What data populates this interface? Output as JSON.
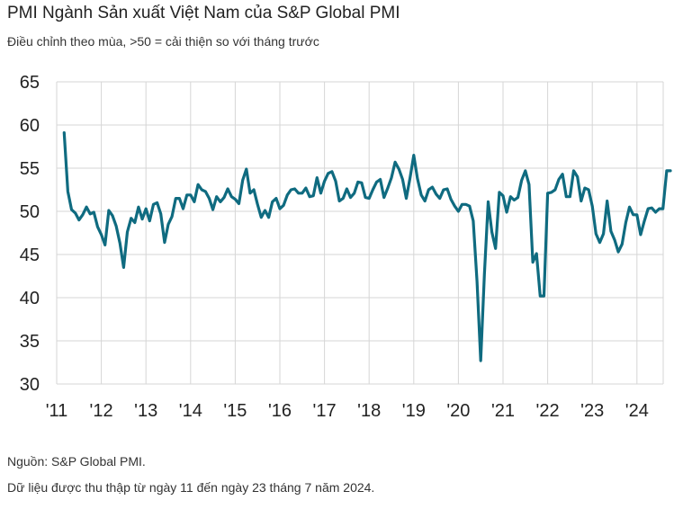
{
  "chart_data": {
    "type": "line",
    "title": "PMI Ngành Sản xuất Việt Nam của S&P Global PMI",
    "subtitle": "Điều chỉnh theo mùa, >50 = cải thiện so với tháng trước",
    "xlabel": "",
    "ylabel": "",
    "ylim": [
      30,
      65
    ],
    "yticks": [
      30,
      35,
      40,
      45,
      50,
      55,
      60,
      65
    ],
    "xtick_labels": [
      "'11",
      "'12",
      "'13",
      "'14",
      "'15",
      "'16",
      "'17",
      "'18",
      "'19",
      "'20",
      "'21",
      "'22",
      "'23",
      "'24"
    ],
    "grid": true,
    "line_color": "#0f6b80",
    "series": [
      {
        "x_start": "2011-03",
        "values": [
          59.1,
          52.3,
          50.2,
          49.8,
          49.0,
          49.6,
          50.5,
          49.7,
          49.9,
          48.2,
          47.3,
          46.1,
          50.1,
          49.5,
          48.3,
          46.3,
          43.5,
          47.6,
          49.2,
          48.7,
          50.5,
          49.1,
          50.3,
          48.9,
          50.8,
          51.0,
          49.7,
          46.4,
          48.5,
          49.4,
          51.5,
          51.5,
          50.3,
          51.9,
          51.9,
          51.1,
          53.1,
          52.5,
          52.3,
          51.5,
          50.2,
          51.7,
          51.1,
          51.6,
          52.6,
          51.7,
          51.4,
          50.9,
          53.6,
          54.9,
          52.1,
          52.5,
          50.8,
          49.3,
          50.1,
          49.3,
          51.1,
          51.5,
          50.3,
          50.7,
          51.9,
          52.5,
          52.6,
          52.1,
          52.1,
          52.7,
          51.7,
          51.8,
          53.9,
          52.1,
          53.5,
          54.4,
          54.6,
          53.5,
          51.2,
          51.5,
          52.6,
          51.6,
          52.1,
          53.4,
          53.3,
          51.6,
          51.5,
          52.5,
          53.4,
          53.7,
          51.6,
          52.7,
          53.9,
          55.7,
          54.9,
          53.7,
          51.5,
          53.9,
          56.5,
          53.8,
          51.9,
          51.2,
          52.5,
          52.8,
          52.0,
          51.5,
          52.5,
          52.6,
          51.4,
          50.6,
          50.0,
          50.8,
          50.8,
          50.6,
          48.9,
          41.9,
          32.7,
          42.7,
          51.1,
          47.6,
          45.7,
          52.2,
          51.8,
          49.9,
          51.7,
          51.3,
          51.6,
          53.6,
          54.7,
          53.1,
          44.1,
          45.1,
          40.2,
          40.2,
          52.1,
          52.2,
          52.5,
          53.7,
          54.3,
          51.7,
          51.7,
          54.7,
          54.0,
          51.2,
          52.7,
          52.5,
          50.6,
          47.4,
          46.4,
          47.4,
          51.2,
          47.7,
          46.7,
          45.3,
          46.2,
          48.7,
          50.5,
          49.6,
          49.6,
          47.3,
          48.9,
          50.3,
          50.4,
          49.9,
          50.3,
          50.3,
          54.7,
          54.7
        ]
      }
    ]
  },
  "footer": {
    "source": "Nguồn: S&P Global PMI.",
    "note": "Dữ liệu được thu thập từ ngày 11 đến ngày 23 tháng 7 năm 2024."
  }
}
